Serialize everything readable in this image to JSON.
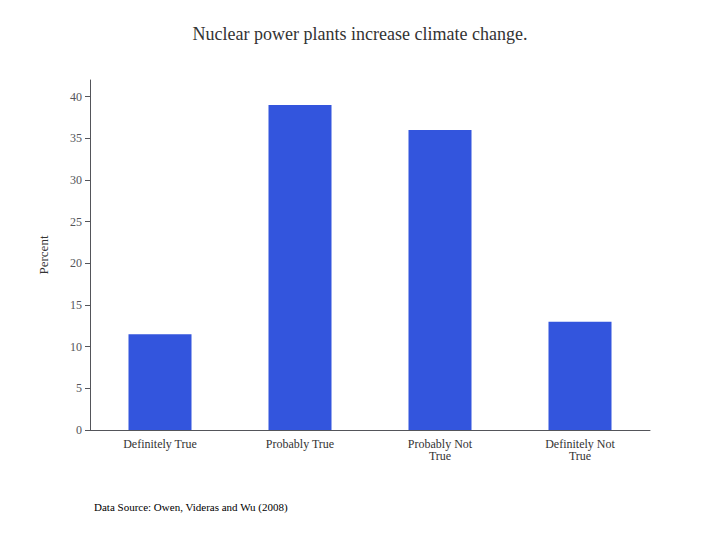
{
  "chart_data": {
    "type": "bar",
    "title": "Nuclear power plants increase climate change.",
    "categories": [
      "Definitely True",
      "Probably True",
      "Probably Not\nTrue",
      "Definitely Not\nTrue"
    ],
    "values": [
      11.5,
      39.0,
      36.0,
      13.0
    ],
    "color": "#3355dd",
    "ylabel": "Percent",
    "ylim": [
      0,
      42
    ],
    "yticks": [
      0,
      5,
      10,
      15,
      20,
      25,
      30,
      35,
      40
    ],
    "grid": false,
    "annotation": "Data Source: Owen, Videras and Wu (2008)"
  }
}
